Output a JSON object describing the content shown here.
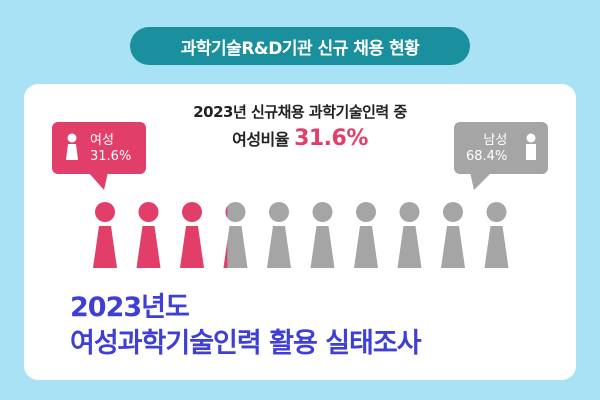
{
  "header": {
    "title": "과학기술R&D기관 신규 채용 현황"
  },
  "chart": {
    "title": "2023년 신규채용 과학기술인력 중",
    "subtitle_label": "여성비율",
    "subtitle_value": "31.6%"
  },
  "legend": {
    "female": {
      "label": "여성",
      "value": "31.6%",
      "icon": "female-person-icon"
    },
    "male": {
      "label": "남성",
      "value": "68.4%",
      "icon": "male-person-icon"
    }
  },
  "headline": {
    "line1": "2023년도",
    "line2": "여성과학기술인력 활용 실태조사"
  },
  "colors": {
    "female": "#e23e6a",
    "male": "#a5a5a5",
    "accent": "#3f3fd6",
    "header": "#1a8f9e"
  },
  "chart_data": {
    "type": "pictograph",
    "unit_count": 10,
    "series": [
      {
        "name": "여성",
        "value": 31.6
      },
      {
        "name": "남성",
        "value": 68.4
      }
    ]
  }
}
